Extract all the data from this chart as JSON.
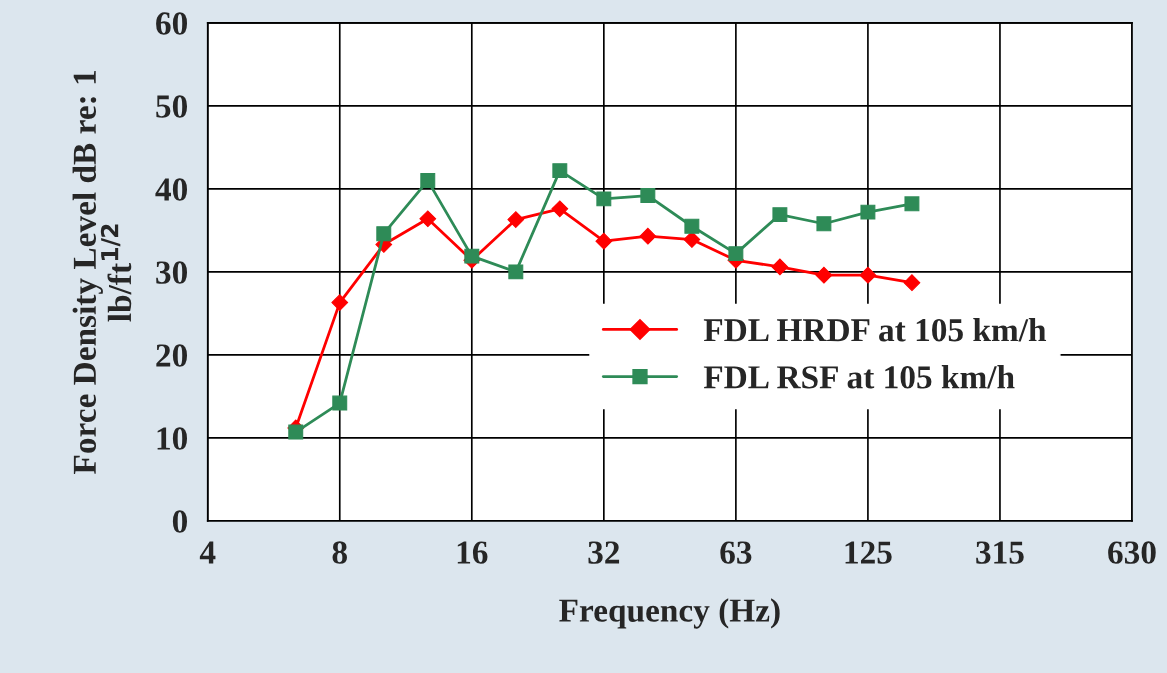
{
  "chart_data": {
    "type": "line",
    "xlabel": "Frequency (Hz)",
    "ylabel": "Force Density Level dB re: 1\nlb/ft$^{1/2}$",
    "categories": [
      "4",
      null,
      null,
      "8",
      null,
      null,
      "16",
      null,
      null,
      "32",
      null,
      null,
      "63",
      null,
      null,
      "125",
      null,
      null,
      "315",
      null,
      null,
      "630"
    ],
    "series": [
      {
        "name": "FDL HRDF at 105 km/h",
        "color": "#ff0000",
        "marker": "diamond",
        "values": [
          null,
          null,
          11.2,
          26.3,
          33.3,
          36.4,
          31.4,
          36.3,
          37.6,
          33.7,
          34.3,
          33.9,
          31.4,
          30.6,
          29.6,
          29.6,
          28.7,
          null,
          null,
          null,
          null,
          null
        ]
      },
      {
        "name": "FDL RSF at 105 km/h",
        "color": "#2e8b57",
        "marker": "square",
        "values": [
          null,
          null,
          10.7,
          14.2,
          34.6,
          41.0,
          31.9,
          30.0,
          42.2,
          38.8,
          39.2,
          35.5,
          32.2,
          36.9,
          35.8,
          37.2,
          38.2,
          null,
          null,
          null,
          null,
          null
        ]
      }
    ],
    "ylim": [
      0,
      60
    ],
    "yticks": [
      0,
      10,
      20,
      30,
      40,
      50,
      60
    ],
    "grid": true,
    "legend": "center right",
    "line_style": "solid"
  }
}
